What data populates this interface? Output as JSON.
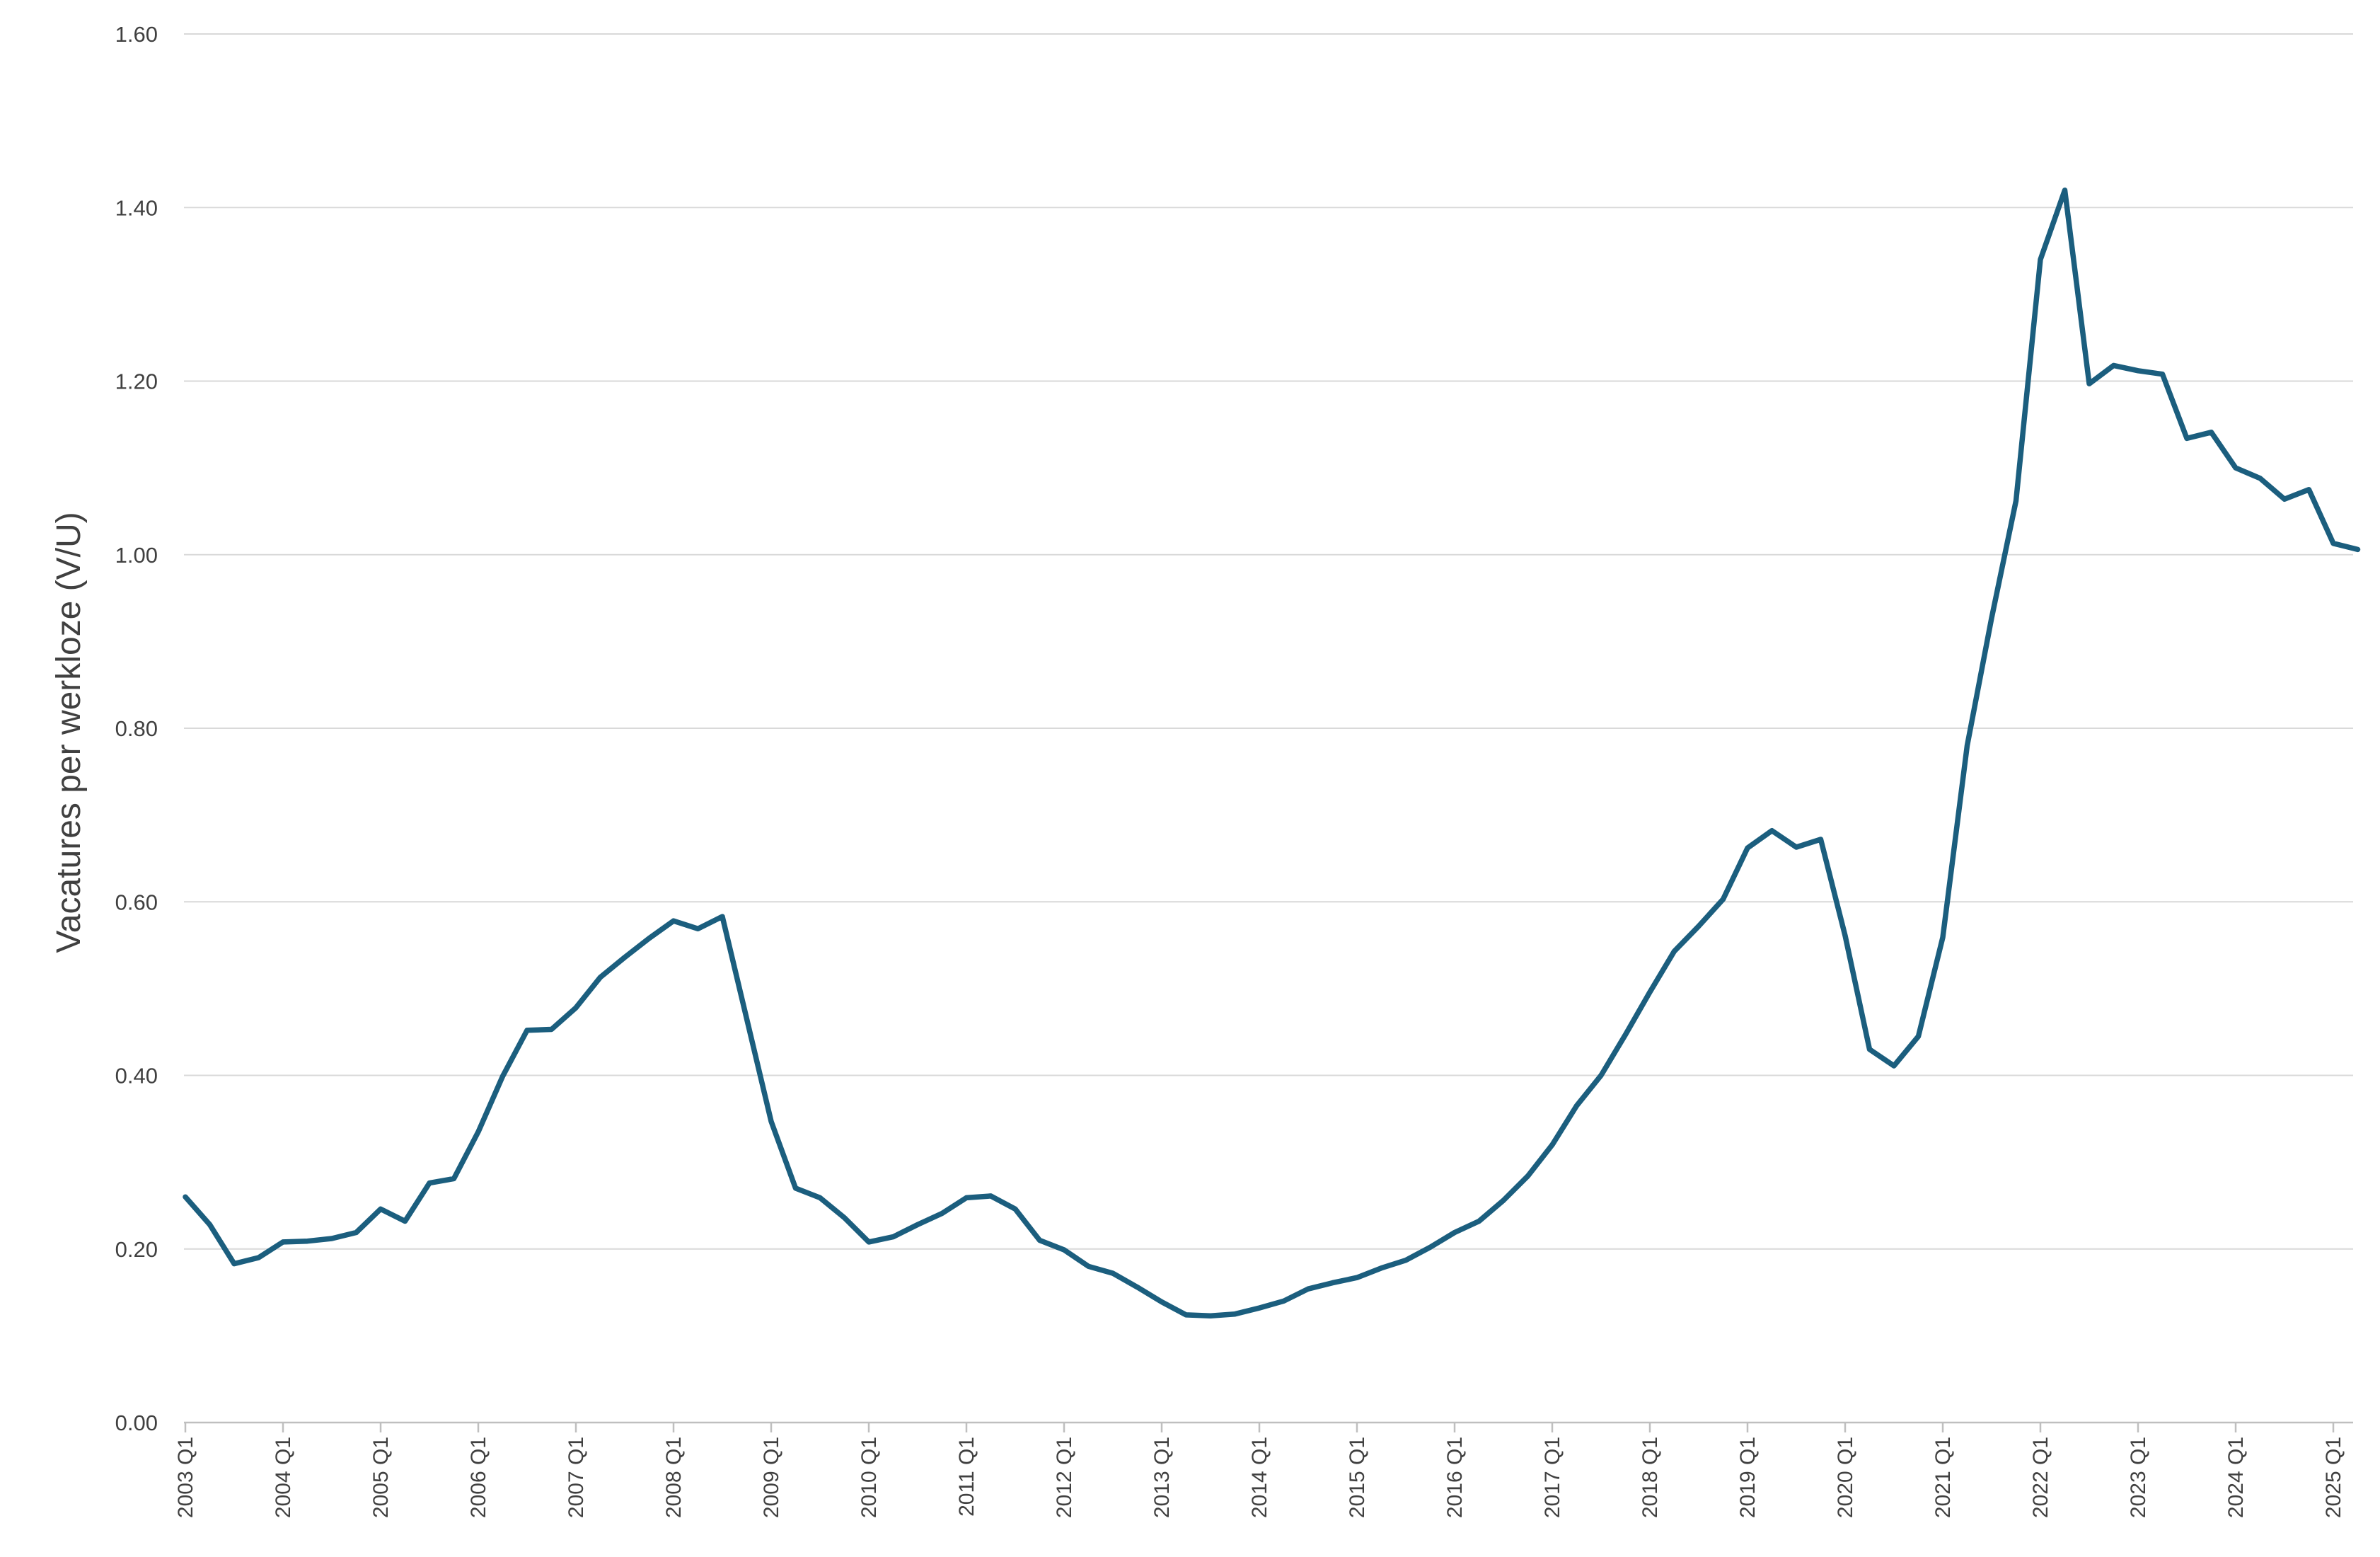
{
  "chart_data": {
    "type": "line",
    "title": "",
    "xlabel": "",
    "ylabel": "Vacatures per werkloze (V/U)",
    "ylim": [
      0,
      1.6
    ],
    "ytick_labels": [
      "0.00",
      "0.20",
      "0.40",
      "0.60",
      "0.80",
      "1.00",
      "1.20",
      "1.40",
      "1.60"
    ],
    "xtick_labels": [
      "2003 Q1",
      "2004 Q1",
      "2005 Q1",
      "2006 Q1",
      "2007 Q1",
      "2008 Q1",
      "2009 Q1",
      "2010 Q1",
      "2011 Q1",
      "2012 Q1",
      "2013 Q1",
      "2014 Q1",
      "2015 Q1",
      "2016 Q1",
      "2017 Q1",
      "2018 Q1",
      "2019 Q1",
      "2020 Q1",
      "2021 Q1",
      "2022 Q1",
      "2023 Q1",
      "2024 Q1",
      "2025 Q1"
    ],
    "grid": true,
    "legend": "none",
    "line_color": "#1b5e7e",
    "series": [
      {
        "x_start": "2003 Q1",
        "values": [
          0.26,
          0.228,
          0.183,
          0.19,
          0.208,
          0.209,
          0.212,
          0.219,
          0.246,
          0.232,
          0.276,
          0.281,
          0.335,
          0.399,
          0.452,
          0.453,
          0.478,
          0.513,
          0.536,
          0.558,
          0.578,
          0.569,
          0.583,
          0.465,
          0.347,
          0.27,
          0.259,
          0.236,
          0.208,
          0.214,
          0.228,
          0.241,
          0.259,
          0.261,
          0.246,
          0.21,
          0.199,
          0.18,
          0.172,
          0.156,
          0.139,
          0.124,
          0.123,
          0.125,
          0.132,
          0.14,
          0.154,
          0.161,
          0.167,
          0.178,
          0.187,
          0.202,
          0.219,
          0.232,
          0.256,
          0.284,
          0.32,
          0.365,
          0.4,
          0.447,
          0.496,
          0.543,
          0.572,
          0.603,
          0.662,
          0.682,
          0.663,
          0.672,
          0.561,
          0.43,
          0.411,
          0.445,
          0.559,
          0.78,
          0.927,
          1.062,
          1.34,
          1.42,
          1.197,
          1.218,
          1.212,
          1.208,
          1.134,
          1.141,
          1.1,
          1.088,
          1.064,
          1.075,
          1.013,
          1.006
        ]
      }
    ]
  }
}
